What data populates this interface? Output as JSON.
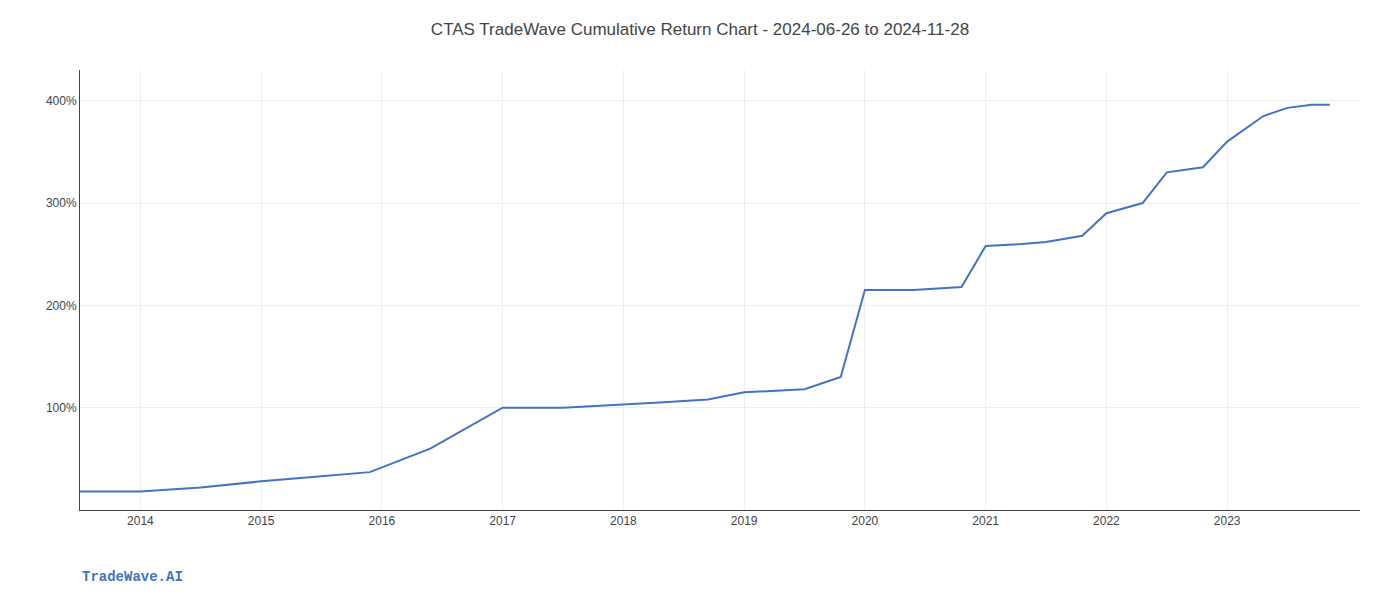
{
  "chart_data": {
    "type": "line",
    "title": "CTAS TradeWave Cumulative Return Chart - 2024-06-26 to 2024-11-28",
    "annotations": [
      "TradeWave.AI"
    ],
    "x": [
      2013.5,
      2014.0,
      2014.5,
      2015.0,
      2015.4,
      2015.9,
      2016.4,
      2017.0,
      2017.5,
      2018.0,
      2018.3,
      2018.7,
      2019.0,
      2019.5,
      2019.6,
      2019.8,
      2020.0,
      2020.4,
      2020.8,
      2021.0,
      2021.3,
      2021.5,
      2021.8,
      2022.0,
      2022.3,
      2022.5,
      2022.8,
      2023.0,
      2023.3,
      2023.5,
      2023.7,
      2023.85
    ],
    "values": [
      18,
      18,
      22,
      28,
      32,
      37,
      60,
      100,
      100,
      103,
      105,
      108,
      115,
      118,
      122,
      130,
      215,
      215,
      218,
      258,
      260,
      262,
      268,
      290,
      300,
      330,
      335,
      360,
      385,
      393,
      396,
      396
    ],
    "color": "#4472C4",
    "xlim": [
      2013.5,
      2024.1
    ],
    "xticks": [
      2014,
      2015,
      2016,
      2017,
      2018,
      2019,
      2020,
      2021,
      2022,
      2023
    ],
    "ylim": [
      0,
      430
    ],
    "yticks": [
      {
        "value": 100,
        "label": "100%"
      },
      {
        "value": 200,
        "label": "200%"
      },
      {
        "value": 300,
        "label": "300%"
      },
      {
        "value": 400,
        "label": "400%"
      }
    ],
    "grid": true
  }
}
